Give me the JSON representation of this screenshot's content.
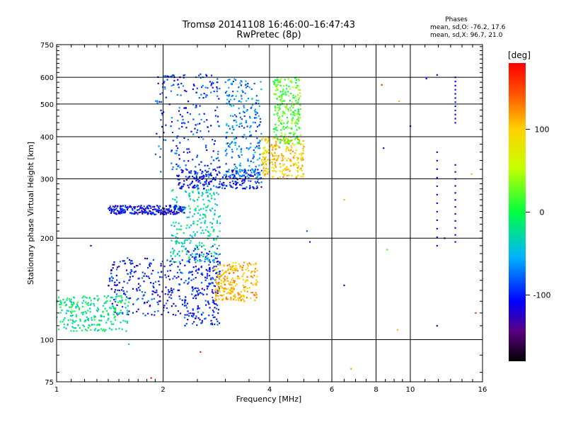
{
  "header": {
    "title": "Tromsø 20141108 16:46:00–16:47:43",
    "subtitle": "RwPretec (8p)"
  },
  "stats": {
    "heading": "Phases",
    "line1": "mean, sd,O: -76.2, 17.6",
    "line2": "mean, sd,X:  96.7, 21.0"
  },
  "colorbar": {
    "unit": "[deg]",
    "ticks": [
      100,
      0,
      -100
    ],
    "range": [
      -180,
      180
    ]
  },
  "chart_data": {
    "type": "scatter",
    "xlabel": "Frequency [MHz]",
    "ylabel": "Stationary phase Virtual Height [km]",
    "xscale": "log",
    "yscale": "log",
    "xlim": [
      1,
      16
    ],
    "ylim": [
      75,
      750
    ],
    "xticks": [
      1,
      2,
      4,
      6,
      8,
      10,
      16
    ],
    "yticks": [
      75,
      100,
      200,
      300,
      400,
      500,
      600,
      750
    ],
    "grid": true,
    "clusters": [
      {
        "x": [
          2.3,
          2.9
        ],
        "y": [
          110,
          190
        ],
        "phase": -100
      },
      {
        "x": [
          1.4,
          2.3
        ],
        "y": [
          118,
          175
        ],
        "phase": -100
      },
      {
        "x": [
          2.1,
          2.9
        ],
        "y": [
          170,
          280
        ],
        "phase": -30
      },
      {
        "x": [
          1.9,
          2.9
        ],
        "y": [
          300,
          620
        ],
        "phase": -90
      },
      {
        "x": [
          1.4,
          2.3
        ],
        "y": [
          235,
          250
        ],
        "phase": -110
      },
      {
        "x": [
          2.2,
          3.8
        ],
        "y": [
          280,
          320
        ],
        "phase": -100
      },
      {
        "x": [
          3.0,
          3.8
        ],
        "y": [
          300,
          600
        ],
        "phase": -70
      },
      {
        "x": [
          3.8,
          5.0
        ],
        "y": [
          300,
          400
        ],
        "phase": 100
      },
      {
        "x": [
          4.1,
          4.9
        ],
        "y": [
          380,
          600
        ],
        "phase": 20
      },
      {
        "x": [
          2.8,
          3.7
        ],
        "y": [
          130,
          170
        ],
        "phase": 110
      },
      {
        "x": [
          1.0,
          1.6
        ],
        "y": [
          106,
          135
        ],
        "phase": -20
      }
    ],
    "sparse_points": [
      {
        "x": 1.25,
        "y": 190,
        "phase": -110
      },
      {
        "x": 1.6,
        "y": 97,
        "phase": -40
      },
      {
        "x": 2.55,
        "y": 92,
        "phase": 170
      },
      {
        "x": 1.85,
        "y": 77,
        "phase": 170
      },
      {
        "x": 5.1,
        "y": 210,
        "phase": -80
      },
      {
        "x": 5.2,
        "y": 195,
        "phase": -100
      },
      {
        "x": 6.5,
        "y": 260,
        "phase": 110
      },
      {
        "x": 6.5,
        "y": 145,
        "phase": -120
      },
      {
        "x": 6.8,
        "y": 82,
        "phase": 120
      },
      {
        "x": 8.3,
        "y": 570,
        "phase": 160
      },
      {
        "x": 8.4,
        "y": 370,
        "phase": -120
      },
      {
        "x": 8.6,
        "y": 185,
        "phase": 20
      },
      {
        "x": 9.2,
        "y": 107,
        "phase": 110
      },
      {
        "x": 9.3,
        "y": 510,
        "phase": 110
      },
      {
        "x": 10.0,
        "y": 430,
        "phase": -120
      },
      {
        "x": 11.1,
        "y": 595,
        "phase": -110
      },
      {
        "x": 11.9,
        "y": 610,
        "phase": -110
      },
      {
        "x": 11.9,
        "y": 110,
        "phase": -130
      },
      {
        "x": 12.5,
        "y": 200,
        "phase": -110
      },
      {
        "x": 14.9,
        "y": 310,
        "phase": 110
      },
      {
        "x": 15.3,
        "y": 120,
        "phase": 160
      }
    ],
    "columns": [
      {
        "x": 11.9,
        "y": [
          190,
          360
        ],
        "phase": -110
      },
      {
        "x": 13.4,
        "y": [
          195,
          330
        ],
        "phase": -115
      },
      {
        "x": 13.4,
        "y": [
          440,
          600
        ],
        "phase": -110
      }
    ]
  }
}
